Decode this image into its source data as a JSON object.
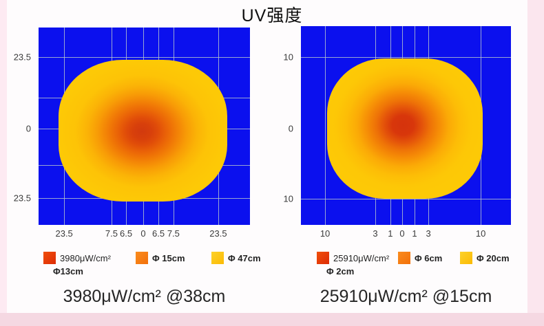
{
  "title": "UV强度",
  "colors": {
    "plot_background": "#0b10ee",
    "gridline": "#b2c0cd",
    "heat_red": "#d5330c",
    "heat_orange": "#f58806",
    "heat_yellow": "#fdc906",
    "page_pink": "#f5d8e2"
  },
  "chart_data": [
    {
      "type": "heatmap",
      "position": "left",
      "caption": "3980μW/cm² @38cm",
      "x_ticks": [
        {
          "label": "23.5",
          "f": 0.121
        },
        {
          "label": "7.5",
          "f": 0.345
        },
        {
          "label": "6.5",
          "f": 0.414
        },
        {
          "label": "0",
          "f": 0.495
        },
        {
          "label": "6.5",
          "f": 0.567
        },
        {
          "label": "7.5",
          "f": 0.638
        },
        {
          "label": "23.5",
          "f": 0.85
        }
      ],
      "y_ticks": [
        {
          "label": "23.5",
          "f": 0.15,
          "line": true
        },
        {
          "label": "0",
          "f": 0.512,
          "line": true
        },
        {
          "label": "23.5",
          "f": 0.864,
          "line": true
        }
      ],
      "extra_h_gridlines": [
        0.355,
        0.697
      ],
      "legend": [
        {
          "color": "red",
          "label": "3980μW/cm²",
          "sub": "Φ13cm"
        },
        {
          "color": "orange",
          "label": "Φ 15cm"
        },
        {
          "color": "yellow",
          "label": "Φ 47cm"
        }
      ]
    },
    {
      "type": "heatmap",
      "position": "right",
      "caption": "25910μW/cm² @15cm",
      "x_ticks": [
        {
          "label": "10",
          "f": 0.115
        },
        {
          "label": "3",
          "f": 0.354
        },
        {
          "label": "1",
          "f": 0.426
        },
        {
          "label": "0",
          "f": 0.482
        },
        {
          "label": "1",
          "f": 0.541
        },
        {
          "label": "3",
          "f": 0.607
        },
        {
          "label": "10",
          "f": 0.856
        }
      ],
      "y_ticks": [
        {
          "label": "10",
          "f": 0.156,
          "line": true
        },
        {
          "label": "0",
          "f": 0.516,
          "line": false
        },
        {
          "label": "10",
          "f": 0.868,
          "line": true
        }
      ],
      "extra_h_gridlines": [],
      "legend": [
        {
          "color": "red",
          "label": "25910μW/cm²",
          "sub": "Φ 2cm"
        },
        {
          "color": "orange",
          "label": "Φ 6cm"
        },
        {
          "color": "yellow",
          "label": "Φ 20cm"
        }
      ]
    }
  ]
}
